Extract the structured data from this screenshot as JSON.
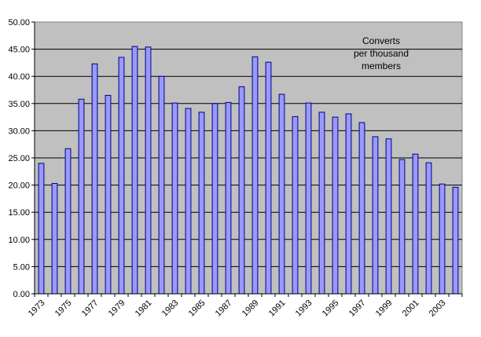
{
  "chart_data": {
    "type": "bar",
    "annotation": [
      "Converts",
      "per thousand",
      "members"
    ],
    "categories": [
      "1973",
      "1974",
      "1975",
      "1976",
      "1977",
      "1978",
      "1979",
      "1980",
      "1981",
      "1982",
      "1983",
      "1984",
      "1985",
      "1986",
      "1987",
      "1988",
      "1989",
      "1990",
      "1991",
      "1992",
      "1993",
      "1994",
      "1995",
      "1996",
      "1997",
      "1998",
      "1999",
      "2000",
      "2001",
      "2002",
      "2003",
      "2004"
    ],
    "x_tick_labels": [
      "1973",
      "1975",
      "1977",
      "1979",
      "1981",
      "1983",
      "1985",
      "1987",
      "1989",
      "1991",
      "1993",
      "1995",
      "1997",
      "1999",
      "2001",
      "2003"
    ],
    "values": [
      24.0,
      20.3,
      26.7,
      35.8,
      42.3,
      36.5,
      43.5,
      45.5,
      45.4,
      40.0,
      35.1,
      34.1,
      33.4,
      35.0,
      35.2,
      38.1,
      43.6,
      42.6,
      36.7,
      32.6,
      35.1,
      33.4,
      32.5,
      33.1,
      31.5,
      28.9,
      28.5,
      24.7,
      25.7,
      24.1,
      20.2,
      19.6
    ],
    "ylim": [
      0,
      50
    ],
    "y_ticks": [
      "0.00",
      "5.00",
      "10.00",
      "15.00",
      "20.00",
      "25.00",
      "30.00",
      "35.00",
      "40.00",
      "45.00",
      "50.00"
    ],
    "grid": true,
    "xlabel": "",
    "ylabel": "",
    "colors": {
      "plot_background": "#c0c0c0",
      "bar_fill": "#9999ff",
      "bar_stroke": "#000080",
      "gridline": "#000000",
      "text": "#000000"
    }
  }
}
